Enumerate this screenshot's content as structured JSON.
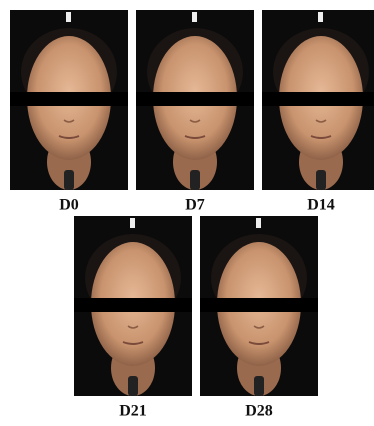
{
  "panels": [
    {
      "label": "D0"
    },
    {
      "label": "D7"
    },
    {
      "label": "D14"
    },
    {
      "label": "D21"
    },
    {
      "label": "D28"
    }
  ]
}
